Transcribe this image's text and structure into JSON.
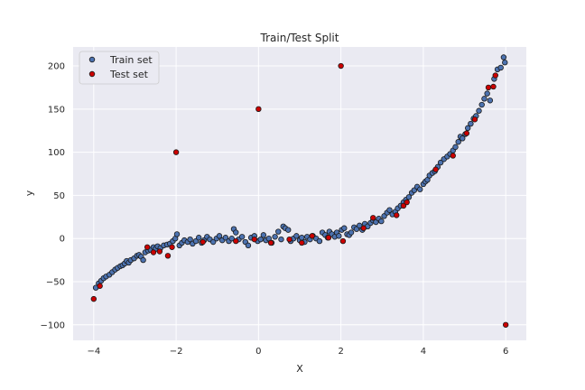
{
  "chart_data": {
    "type": "scatter",
    "title": "Train/Test Split",
    "xlabel": "X",
    "ylabel": "y",
    "xlim": [
      -4.5,
      6.5
    ],
    "ylim": [
      -118,
      222
    ],
    "xticks": [
      -4,
      -2,
      0,
      2,
      4,
      6
    ],
    "xtick_labels": [
      "−4",
      "−2",
      "0",
      "2",
      "4",
      "6"
    ],
    "yticks": [
      -100,
      -50,
      0,
      50,
      100,
      150,
      200
    ],
    "ytick_labels": [
      "−100",
      "−50",
      "0",
      "50",
      "100",
      "150",
      "200"
    ],
    "grid": true,
    "legend_position": "top-left",
    "background_color": "#eaeaf2",
    "series": [
      {
        "name": "Train set",
        "color": "#4c72b0",
        "points": [
          [
            -3.95,
            -57
          ],
          [
            -3.88,
            -52
          ],
          [
            -3.82,
            -49
          ],
          [
            -3.76,
            -46
          ],
          [
            -3.7,
            -44
          ],
          [
            -3.62,
            -42
          ],
          [
            -3.55,
            -39
          ],
          [
            -3.48,
            -36
          ],
          [
            -3.42,
            -34
          ],
          [
            -3.35,
            -32
          ],
          [
            -3.3,
            -31
          ],
          [
            -3.25,
            -29
          ],
          [
            -3.2,
            -26
          ],
          [
            -3.15,
            -28
          ],
          [
            -3.1,
            -25
          ],
          [
            -3.02,
            -23
          ],
          [
            -2.95,
            -20
          ],
          [
            -2.9,
            -19
          ],
          [
            -2.85,
            -21
          ],
          [
            -2.8,
            -25
          ],
          [
            -2.75,
            -16
          ],
          [
            -2.68,
            -14
          ],
          [
            -2.62,
            -13
          ],
          [
            -2.55,
            -10
          ],
          [
            -2.5,
            -12
          ],
          [
            -2.45,
            -9
          ],
          [
            -2.38,
            -11
          ],
          [
            -2.3,
            -8
          ],
          [
            -2.22,
            -7
          ],
          [
            -2.15,
            -6
          ],
          [
            -2.08,
            -3
          ],
          [
            -2.02,
            0
          ],
          [
            -1.98,
            5
          ],
          [
            -1.92,
            -8
          ],
          [
            -1.86,
            -5
          ],
          [
            -1.8,
            -2
          ],
          [
            -1.72,
            -4
          ],
          [
            -1.66,
            -1
          ],
          [
            -1.6,
            -6
          ],
          [
            -1.52,
            -3
          ],
          [
            -1.45,
            1
          ],
          [
            -1.38,
            -5
          ],
          [
            -1.32,
            -2
          ],
          [
            -1.25,
            2
          ],
          [
            -1.18,
            -1
          ],
          [
            -1.1,
            -4
          ],
          [
            -1.02,
            0
          ],
          [
            -0.95,
            3
          ],
          [
            -0.88,
            -2
          ],
          [
            -0.8,
            1
          ],
          [
            -0.72,
            -3
          ],
          [
            -0.65,
            0
          ],
          [
            -0.6,
            11
          ],
          [
            -0.55,
            7
          ],
          [
            -0.48,
            -1
          ],
          [
            -0.4,
            2
          ],
          [
            -0.32,
            -4
          ],
          [
            -0.25,
            -8
          ],
          [
            -0.18,
            1
          ],
          [
            -0.1,
            3
          ],
          [
            -0.02,
            -3
          ],
          [
            0.05,
            -1
          ],
          [
            0.12,
            4
          ],
          [
            0.18,
            -2
          ],
          [
            0.25,
            0
          ],
          [
            0.32,
            -5
          ],
          [
            0.4,
            2
          ],
          [
            0.48,
            8
          ],
          [
            0.55,
            -1
          ],
          [
            0.6,
            14
          ],
          [
            0.65,
            12
          ],
          [
            0.72,
            10
          ],
          [
            0.78,
            -3
          ],
          [
            0.85,
            0
          ],
          [
            0.92,
            3
          ],
          [
            1.0,
            -2
          ],
          [
            1.05,
            1
          ],
          [
            1.12,
            -4
          ],
          [
            1.18,
            2
          ],
          [
            1.25,
            -1
          ],
          [
            1.32,
            3
          ],
          [
            1.4,
            0
          ],
          [
            1.48,
            -3
          ],
          [
            1.55,
            7
          ],
          [
            1.62,
            4
          ],
          [
            1.68,
            1
          ],
          [
            1.72,
            8
          ],
          [
            1.78,
            5
          ],
          [
            1.85,
            2
          ],
          [
            1.9,
            7
          ],
          [
            1.95,
            3
          ],
          [
            2.02,
            10
          ],
          [
            2.08,
            12
          ],
          [
            2.15,
            5
          ],
          [
            2.2,
            4
          ],
          [
            2.25,
            7
          ],
          [
            2.32,
            13
          ],
          [
            2.38,
            11
          ],
          [
            2.45,
            15
          ],
          [
            2.52,
            10
          ],
          [
            2.58,
            17
          ],
          [
            2.65,
            14
          ],
          [
            2.72,
            18
          ],
          [
            2.78,
            21
          ],
          [
            2.85,
            19
          ],
          [
            2.92,
            23
          ],
          [
            2.98,
            20
          ],
          [
            3.05,
            26
          ],
          [
            3.12,
            30
          ],
          [
            3.18,
            33
          ],
          [
            3.25,
            28
          ],
          [
            3.32,
            31
          ],
          [
            3.38,
            35
          ],
          [
            3.45,
            38
          ],
          [
            3.52,
            42
          ],
          [
            3.58,
            45
          ],
          [
            3.65,
            48
          ],
          [
            3.72,
            53
          ],
          [
            3.78,
            56
          ],
          [
            3.85,
            60
          ],
          [
            3.92,
            57
          ],
          [
            4.0,
            63
          ],
          [
            4.05,
            66
          ],
          [
            4.1,
            68
          ],
          [
            4.15,
            73
          ],
          [
            4.22,
            76
          ],
          [
            4.28,
            78
          ],
          [
            4.35,
            83
          ],
          [
            4.42,
            88
          ],
          [
            4.5,
            92
          ],
          [
            4.58,
            95
          ],
          [
            4.65,
            98
          ],
          [
            4.72,
            102
          ],
          [
            4.78,
            106
          ],
          [
            4.85,
            112
          ],
          [
            4.9,
            118
          ],
          [
            4.95,
            116
          ],
          [
            5.02,
            121
          ],
          [
            5.08,
            128
          ],
          [
            5.15,
            133
          ],
          [
            5.22,
            139
          ],
          [
            5.28,
            142
          ],
          [
            5.35,
            148
          ],
          [
            5.42,
            155
          ],
          [
            5.48,
            162
          ],
          [
            5.55,
            168
          ],
          [
            5.62,
            160
          ],
          [
            5.72,
            185
          ],
          [
            5.8,
            196
          ],
          [
            5.88,
            198
          ],
          [
            5.95,
            210
          ],
          [
            5.98,
            204
          ]
        ]
      },
      {
        "name": "Test set",
        "color": "#cc0000",
        "points": [
          [
            -4.0,
            -70
          ],
          [
            -3.85,
            -55
          ],
          [
            -2.7,
            -10
          ],
          [
            -2.55,
            -16
          ],
          [
            -2.4,
            -15
          ],
          [
            -2.2,
            -20
          ],
          [
            -2.1,
            -10
          ],
          [
            -2.0,
            100
          ],
          [
            -1.35,
            -4
          ],
          [
            -0.55,
            -3
          ],
          [
            -0.1,
            -1
          ],
          [
            0.0,
            150
          ],
          [
            0.3,
            -5
          ],
          [
            0.75,
            -1
          ],
          [
            1.05,
            -5
          ],
          [
            1.3,
            3
          ],
          [
            1.7,
            1
          ],
          [
            2.0,
            200
          ],
          [
            2.05,
            -3
          ],
          [
            2.55,
            12
          ],
          [
            2.78,
            24
          ],
          [
            3.35,
            27
          ],
          [
            3.52,
            38
          ],
          [
            3.6,
            42
          ],
          [
            4.3,
            80
          ],
          [
            4.72,
            96
          ],
          [
            5.05,
            122
          ],
          [
            5.25,
            138
          ],
          [
            5.58,
            175
          ],
          [
            5.7,
            176
          ],
          [
            5.75,
            189
          ],
          [
            6.0,
            -100
          ]
        ]
      }
    ]
  }
}
